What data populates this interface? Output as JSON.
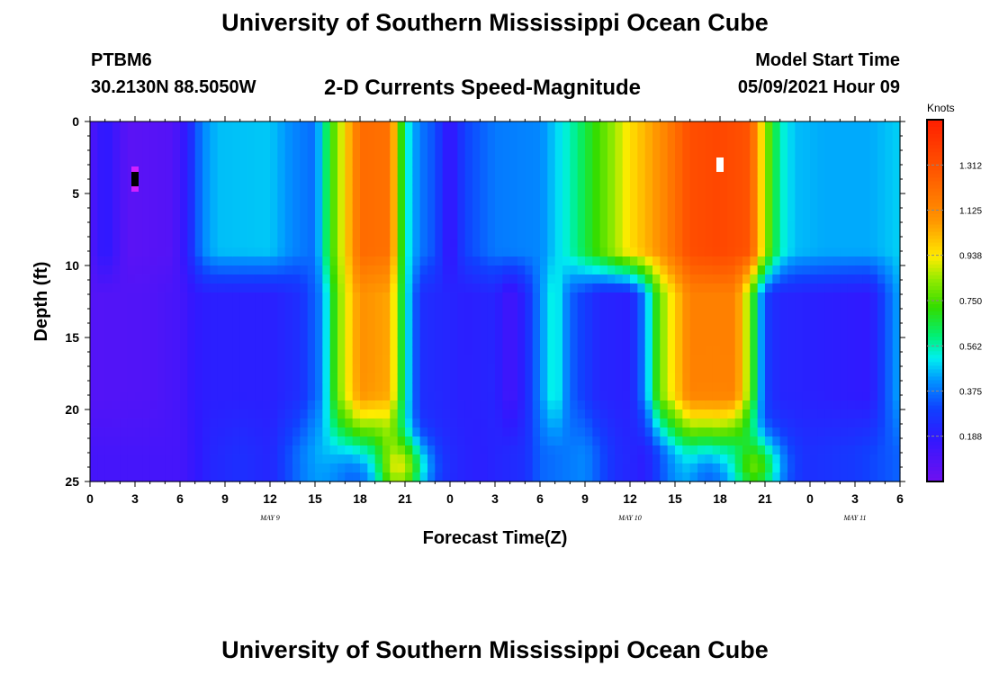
{
  "header": {
    "title": "University of Southern Mississippi Ocean Cube",
    "station": "PTBM6",
    "coords": "30.2130N  88.5050W",
    "subtitle": "2-D Currents Speed-Magnitude",
    "start_label": "Model Start Time",
    "start_value": "05/09/2021 Hour 09",
    "footer_title": "University of Southern Mississippi Ocean Cube"
  },
  "chart_data": {
    "type": "heatmap",
    "title": "2-D Currents Speed-Magnitude",
    "xlabel": "Forecast Time(Z)",
    "ylabel": "Depth (ft)",
    "x_ticks": [
      "0",
      "3",
      "6",
      "9",
      "12",
      "15",
      "18",
      "21",
      "0",
      "3",
      "6",
      "9",
      "12",
      "15",
      "18",
      "21",
      "0",
      "3",
      "6"
    ],
    "x_range_hours": [
      0,
      54
    ],
    "y_ticks": [
      "0",
      "5",
      "10",
      "15",
      "20",
      "25"
    ],
    "y_range": [
      0,
      25
    ],
    "y_inverted": true,
    "date_labels": [
      {
        "text": "MAY 9",
        "hour": 12
      },
      {
        "text": "MAY 10",
        "hour": 36
      },
      {
        "text": "MAY 11",
        "hour": 51
      }
    ],
    "colorbar": {
      "unit": "Knots",
      "ticks": [
        "0.188",
        "0.375",
        "0.562",
        "0.750",
        "0.938",
        "1.125",
        "1.312"
      ],
      "range": [
        0,
        1.5
      ]
    },
    "grid": false,
    "legend": "right",
    "features": [
      {
        "hour_start": 16,
        "hour_end": 20.5,
        "peak": 1.22,
        "depth_bottom": 20.5,
        "note": "strong current band"
      },
      {
        "hour_start": 38,
        "hour_end": 45,
        "peak": 1.38,
        "depth_bottom": 20,
        "note": "strongest current band"
      },
      {
        "hour_start": 0,
        "hour_end": 7,
        "peak": 0.06,
        "note": "weak current period"
      }
    ],
    "markers": [
      {
        "hour": 3,
        "depth": 4,
        "color": "#000000"
      },
      {
        "hour": 42,
        "depth": 3,
        "color": "#ffffff"
      }
    ]
  }
}
